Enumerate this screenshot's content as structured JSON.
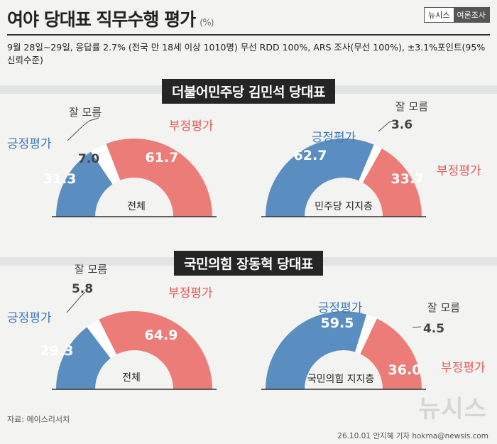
{
  "header": {
    "title": "여야 당대표 직무수행 평가",
    "unit": "(%)",
    "brand_left": "뉴시스",
    "brand_right": "여론조사"
  },
  "survey_note": "9월 28일~29일, 응답률 2.7% (전국 만 18세 이상 1010명) 무선 RDD 100%, ARS 조사(무선 100%), ±3.1%포인트(95%신뢰수준)",
  "colors": {
    "positive": "#5b8ec0",
    "negative": "#ec7c78",
    "unsure": "#ffffff",
    "positive_text": "#3d78b5",
    "negative_text": "#e25b57"
  },
  "sections": [
    {
      "title": "더불어민주당 김민석 당대표"
    },
    {
      "title": "국민의힘 장동혁 당대표"
    }
  ],
  "chart_data": [
    {
      "type": "pie",
      "variant": "half-donut",
      "title": "더불어민주당 김민석 당대표",
      "group": "전체",
      "categories": [
        "긍정평가",
        "잘 모름",
        "부정평가"
      ],
      "values": [
        31.3,
        7.0,
        61.7
      ],
      "labels": [
        "31.3",
        "7.0",
        "61.7"
      ]
    },
    {
      "type": "pie",
      "variant": "half-donut",
      "title": "더불어민주당 김민석 당대표",
      "group": "민주당 지지층",
      "categories": [
        "긍정평가",
        "잘 모름",
        "부정평가"
      ],
      "values": [
        62.7,
        3.6,
        33.7
      ],
      "labels": [
        "62.7",
        "3.6",
        "33.7"
      ]
    },
    {
      "type": "pie",
      "variant": "half-donut",
      "title": "국민의힘 장동혁 당대표",
      "group": "전체",
      "categories": [
        "긍정평가",
        "잘 모름",
        "부정평가"
      ],
      "values": [
        29.3,
        5.8,
        64.9
      ],
      "labels": [
        "29.3",
        "5.8",
        "64.9"
      ]
    },
    {
      "type": "pie",
      "variant": "half-donut",
      "title": "국민의힘 장동혁 당대표",
      "group": "국민의힘 지지층",
      "categories": [
        "긍정평가",
        "잘 모름",
        "부정평가"
      ],
      "values": [
        59.5,
        4.5,
        36.0
      ],
      "labels": [
        "59.5",
        "4.5",
        "36.0"
      ]
    }
  ],
  "footer": {
    "source": "자료: 에이스리서치",
    "credit": "26.10.01 안지혜 기자 hokma@newsis.com",
    "watermark": "뉴시스"
  }
}
